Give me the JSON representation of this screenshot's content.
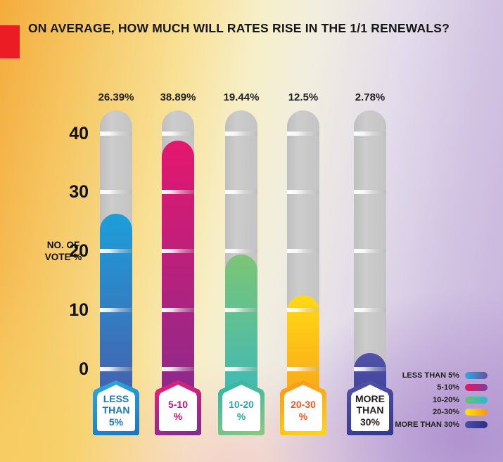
{
  "title": "ON AVERAGE, HOW MUCH WILL RATES RISE IN THE 1/1 RENEWALS?",
  "accent_color": "#EC1C24",
  "y_axis": {
    "label_line1": "NO. OF",
    "label_line2": "VOTE %",
    "ticks": [
      "40",
      "30",
      "20",
      "10",
      "0"
    ]
  },
  "bars": [
    {
      "value": 26.39,
      "value_label": "26.39%",
      "badge_lines": [
        "LESS",
        "THAN",
        "5%"
      ],
      "badge_text_color": "#1B75BC",
      "fill_from": "#1C9FDA",
      "fill_to": "#4F53A4",
      "border_from": "#29ABE2",
      "border_to": "#1C75BC"
    },
    {
      "value": 38.89,
      "value_label": "38.89%",
      "badge_lines": [
        "5-10",
        "%"
      ],
      "badge_text_color": "#BE1383",
      "fill_from": "#E5176E",
      "fill_to": "#7E2D90",
      "border_from": "#ED1E79",
      "border_to": "#7B2E8E"
    },
    {
      "value": 19.44,
      "value_label": "19.44%",
      "badge_lines": [
        "10-20",
        "%"
      ],
      "badge_text_color": "#2AABA6",
      "fill_from": "#7CC576",
      "fill_to": "#2DB6C8",
      "border_from": "#2BB5A9",
      "border_to": "#8CC97F"
    },
    {
      "value": 12.5,
      "value_label": "12.5%",
      "badge_lines": [
        "20-30",
        "%"
      ],
      "badge_text_color": "#F15A24",
      "fill_from": "#FFD914",
      "fill_to": "#F7941E",
      "border_from": "#F7941D",
      "border_to": "#FFD813"
    },
    {
      "value": 2.78,
      "value_label": "2.78%",
      "badge_lines": [
        "MORE",
        "THAN",
        "30%"
      ],
      "badge_text_color": "#231F20",
      "fill_from": "#5254A8",
      "fill_to": "#2E3192",
      "border_from": "#5254A8",
      "border_to": "#34378F"
    }
  ],
  "legend": {
    "items": [
      {
        "label": "LESS THAN 5%",
        "from": "#29ABE2",
        "to": "#6A4E9D"
      },
      {
        "label": "5-10%",
        "from": "#EC1164",
        "to": "#7B3F98"
      },
      {
        "label": "10-20%",
        "from": "#6BC173",
        "to": "#2AB9D1"
      },
      {
        "label": "20-30%",
        "from": "#FFE312",
        "to": "#F7941D"
      },
      {
        "label": "MORE THAN 30%",
        "from": "#4C50A2",
        "to": "#2B2E83"
      }
    ]
  },
  "chart_data": {
    "type": "bar",
    "title": "ON AVERAGE, HOW MUCH WILL RATES RISE IN THE 1/1 RENEWALS?",
    "categories": [
      "LESS THAN 5%",
      "5-10%",
      "10-20%",
      "20-30%",
      "MORE THAN 30%"
    ],
    "values": [
      26.39,
      38.89,
      19.44,
      12.5,
      2.78
    ],
    "value_labels": [
      "26.39%",
      "38.89%",
      "19.44%",
      "12.5%",
      "2.78%"
    ],
    "xlabel": "",
    "ylabel": "NO. OF VOTE %",
    "ylim": [
      0,
      44
    ],
    "yticks": [
      0,
      10,
      20,
      30,
      40
    ],
    "grid": false,
    "legend_position": "bottom-right",
    "bar_style": "thermometer-tube",
    "series_colors": [
      "#1C9FDA→#4F53A4",
      "#E5176E→#7E2D90",
      "#7CC576→#2DB6C8",
      "#FFD914→#F7941E",
      "#5254A8→#2E3192"
    ]
  }
}
